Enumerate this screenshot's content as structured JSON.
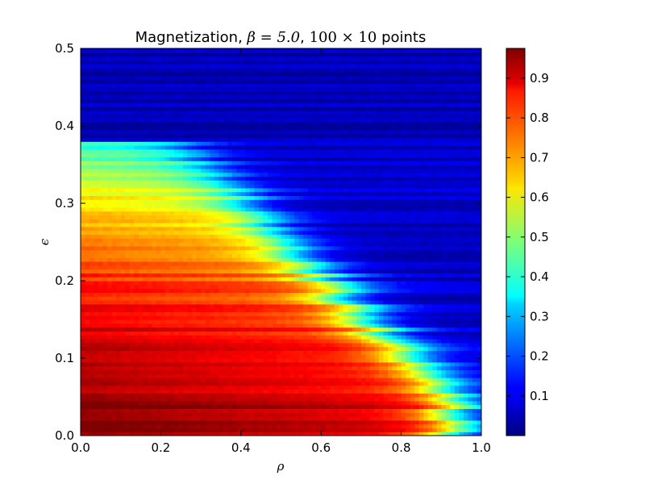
{
  "chart_data": {
    "type": "heatmap",
    "title": {
      "prefix": "Magnetization, ",
      "beta_expr": "β = 5.0",
      "sep": ", ",
      "points_expr": "100 × 10",
      "suffix": " points"
    },
    "xlabel": "ρ",
    "ylabel": "ϵ",
    "xlim": [
      0.0,
      1.0
    ],
    "ylim": [
      0.0,
      0.5
    ],
    "x_ticks": [
      "0.0",
      "0.2",
      "0.4",
      "0.6",
      "0.8",
      "1.0"
    ],
    "x_tick_values": [
      0.0,
      0.2,
      0.4,
      0.6,
      0.8,
      1.0
    ],
    "y_ticks": [
      "0.0",
      "0.1",
      "0.2",
      "0.3",
      "0.4",
      "0.5"
    ],
    "y_tick_values": [
      0.0,
      0.1,
      0.2,
      0.3,
      0.4,
      0.5
    ],
    "colorbar": {
      "colormap": "jet",
      "range": [
        0.0,
        0.975
      ],
      "ticks": [
        "0.1",
        "0.2",
        "0.3",
        "0.4",
        "0.5",
        "0.6",
        "0.7",
        "0.8",
        "0.9"
      ],
      "tick_values": [
        0.1,
        0.2,
        0.3,
        0.4,
        0.5,
        0.6,
        0.7,
        0.8,
        0.9
      ]
    },
    "regions": [
      {
        "eps_range": [
          0.0,
          0.05
        ],
        "value": 0.96
      },
      {
        "eps_range": [
          0.05,
          0.15
        ],
        "value": 0.9
      },
      {
        "eps_range": [
          0.15,
          0.25
        ],
        "value": 0.8
      },
      {
        "eps_range": [
          0.25,
          0.3
        ],
        "value": 0.65
      },
      {
        "eps_range": [
          0.3,
          0.38
        ],
        "value": 0.45
      },
      {
        "eps_range": [
          0.38,
          0.5
        ],
        "value": 0.05
      }
    ]
  }
}
